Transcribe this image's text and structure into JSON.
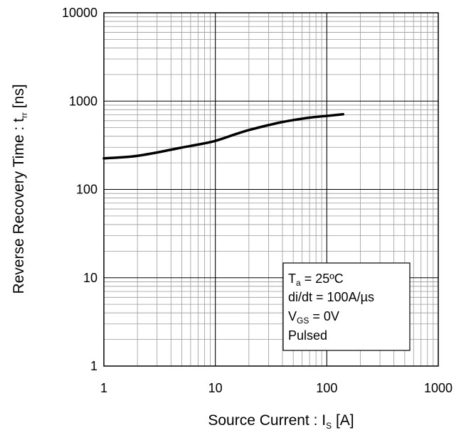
{
  "chart_data": {
    "type": "line",
    "xscale": "log",
    "yscale": "log",
    "xlim": [
      1,
      1000
    ],
    "ylim": [
      1,
      10000
    ],
    "grid": true,
    "x_ticks": [
      "1",
      "10",
      "100",
      "1000"
    ],
    "y_ticks": [
      "1",
      "10",
      "100",
      "1000",
      "10000"
    ],
    "xlabel": {
      "main": "Source Current : I",
      "sub": "S",
      "unit": " [A]"
    },
    "ylabel": {
      "main": "Reverse Recovery Time : t",
      "sub": "rr",
      "unit": " [ns]"
    },
    "series": [
      {
        "color": "#000000",
        "x": [
          1,
          1.5,
          2,
          3,
          5,
          7,
          10,
          15,
          20,
          30,
          40,
          50,
          70,
          100,
          140
        ],
        "y": [
          225,
          232,
          240,
          262,
          298,
          322,
          355,
          420,
          470,
          535,
          580,
          610,
          650,
          680,
          710
        ]
      }
    ],
    "annotation": {
      "position": "bottom-right",
      "lines": [
        {
          "main": "T",
          "sub": "a",
          "rest": " = 25ºC"
        },
        {
          "main": "di/dt = 100A/µs",
          "sub": "",
          "rest": ""
        },
        {
          "main": "V",
          "sub": "GS",
          "rest": " = 0V"
        },
        {
          "main": "Pulsed",
          "sub": "",
          "rest": ""
        }
      ]
    }
  }
}
